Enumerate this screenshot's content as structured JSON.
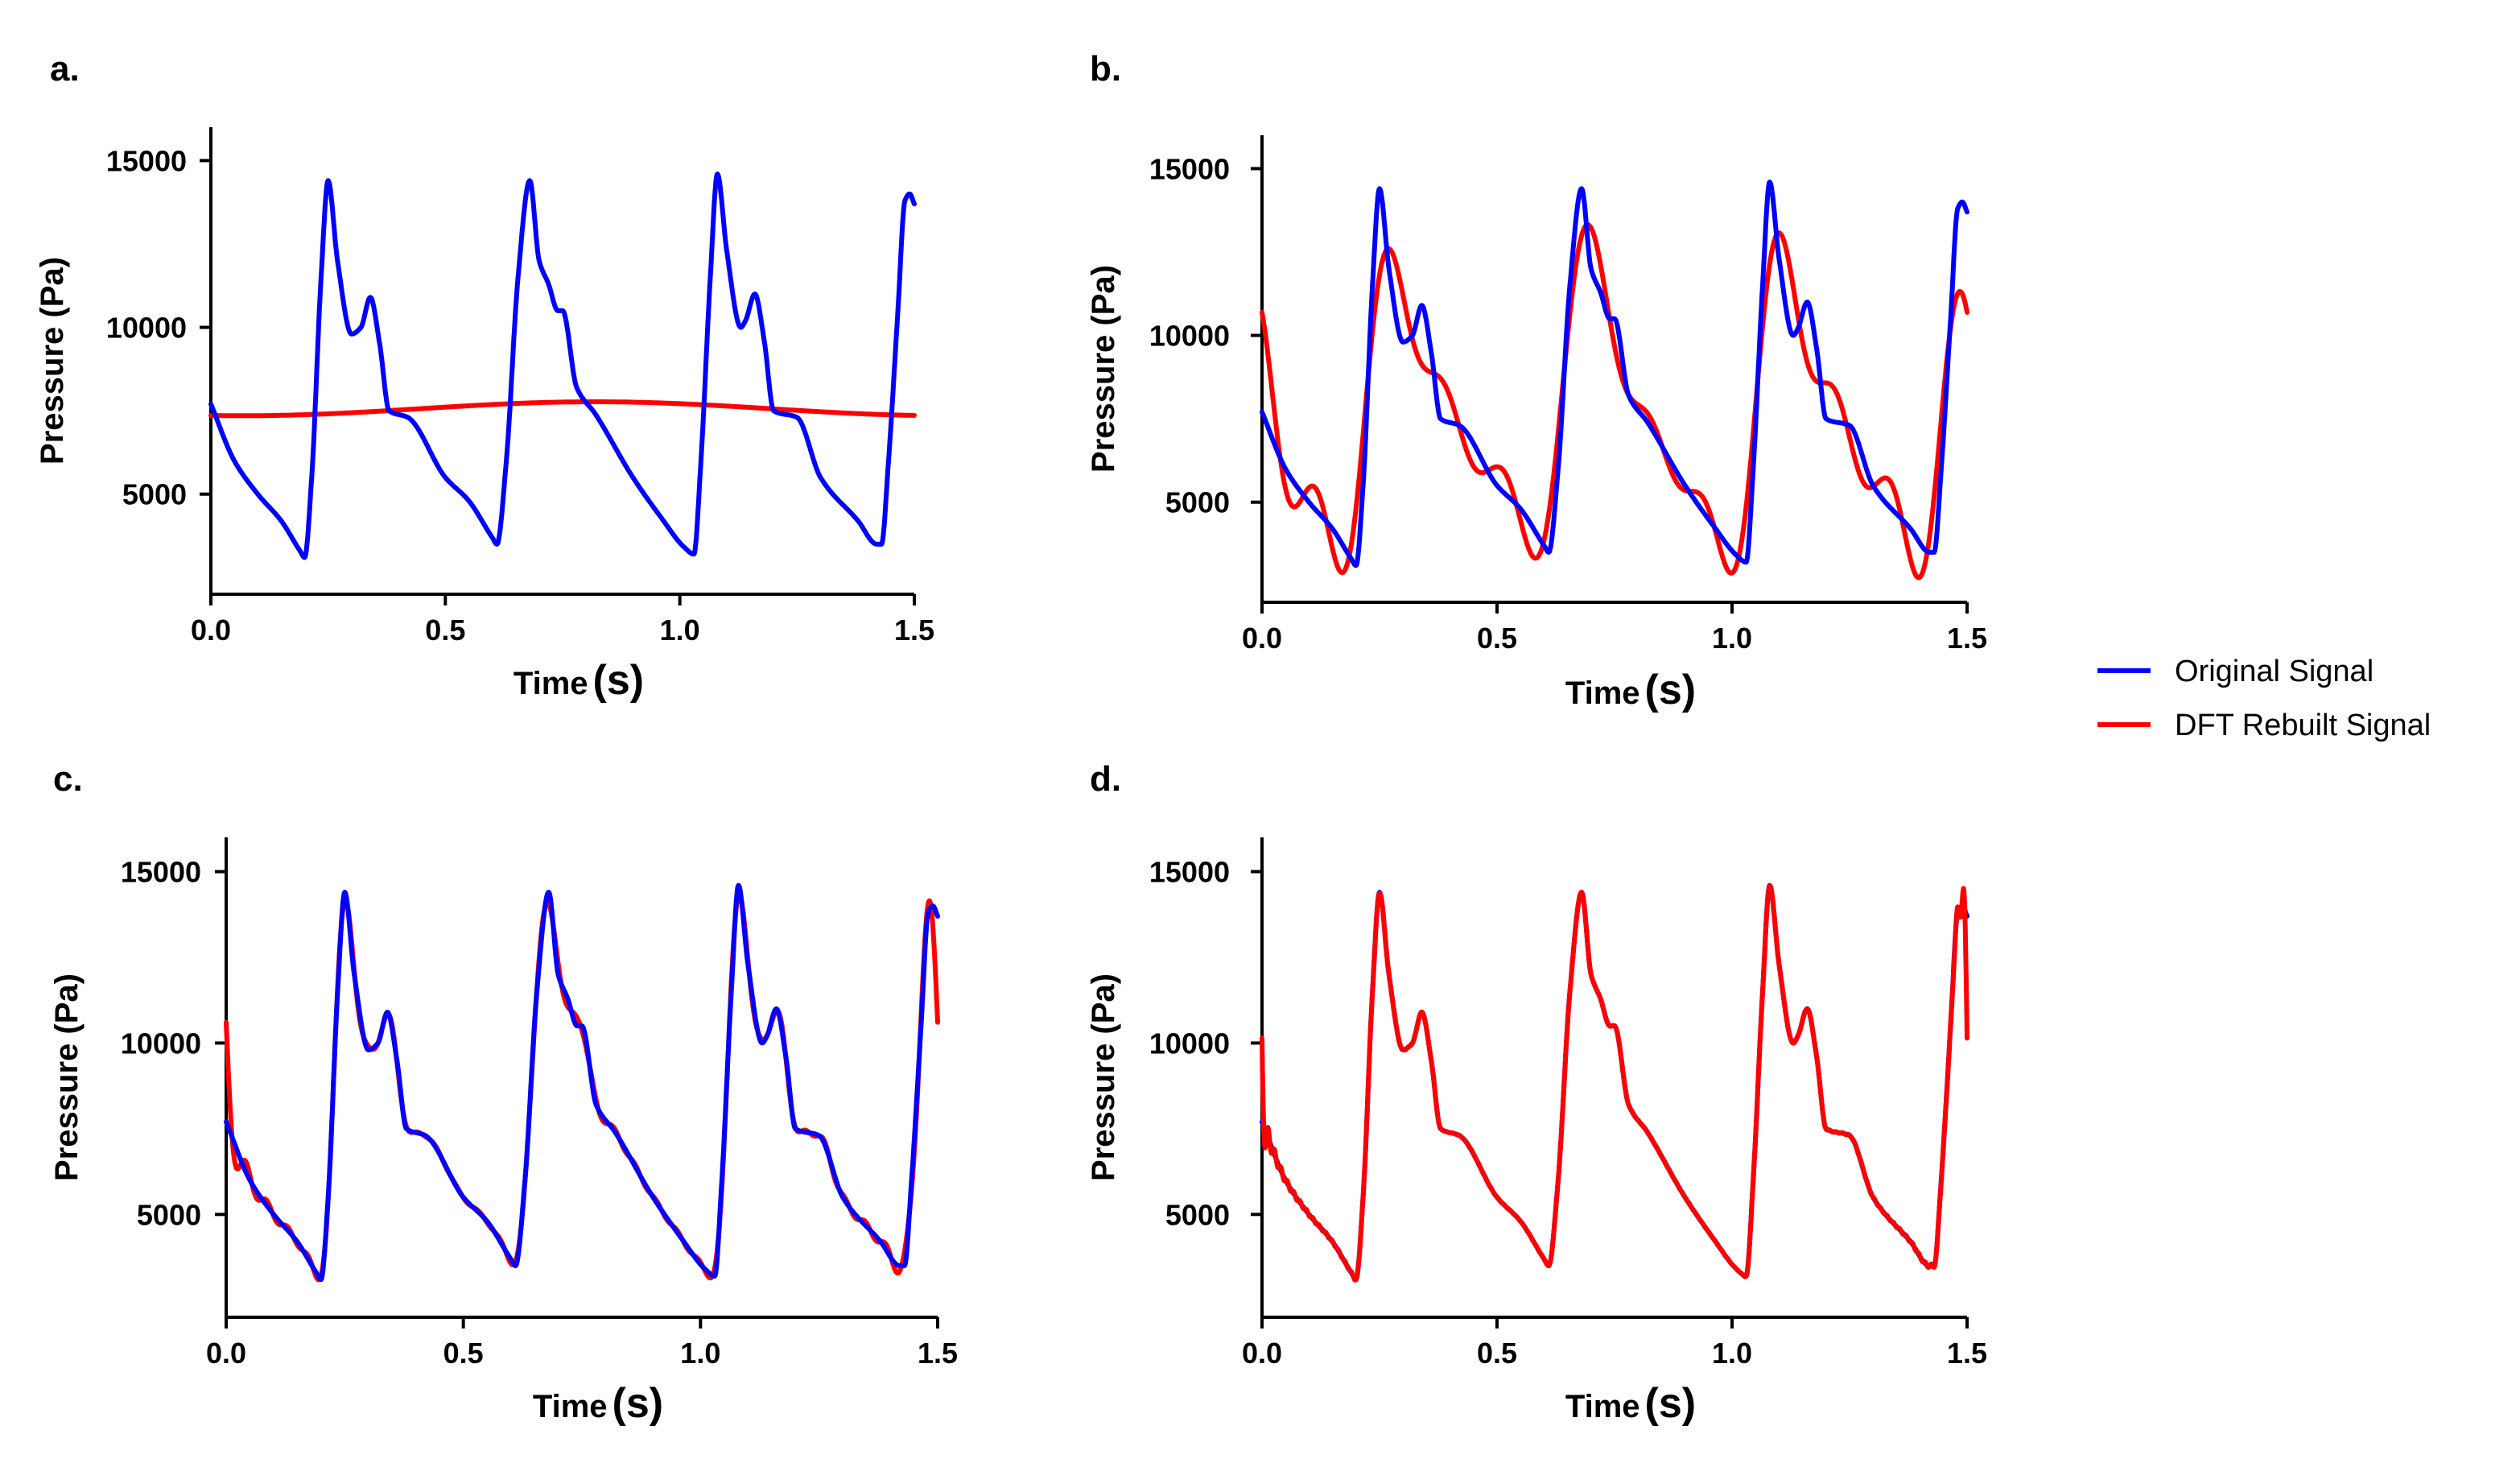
{
  "chart_data": [
    {
      "type": "line",
      "panel": "a.",
      "title": "",
      "xlabel": "Time",
      "xlabel_unit": "(s)",
      "ylabel": "Pressure (Pa)",
      "xlim": [
        0,
        1.5
      ],
      "ylim": [
        2000,
        16000
      ],
      "xticks": [
        "0.0",
        "0.5",
        "1.0",
        "1.5"
      ],
      "yticks": [
        "5000",
        "10000",
        "15000"
      ],
      "series": [
        {
          "name": "Original Signal",
          "color": "#0000ff",
          "style": "original"
        },
        {
          "name": "DFT Rebuilt Signal",
          "color": "#ff0000",
          "style": "dft_lowest"
        }
      ]
    },
    {
      "type": "line",
      "panel": "b.",
      "title": "",
      "xlabel": "Time",
      "xlabel_unit": "(s)",
      "ylabel": "Pressure (Pa)",
      "xlim": [
        0,
        1.5
      ],
      "ylim": [
        2000,
        16000
      ],
      "xticks": [
        "0.0",
        "0.5",
        "1.0",
        "1.5"
      ],
      "yticks": [
        "5000",
        "10000",
        "15000"
      ],
      "series": [
        {
          "name": "Original Signal",
          "color": "#0000ff",
          "style": "original"
        },
        {
          "name": "DFT Rebuilt Signal",
          "color": "#ff0000",
          "style": "dft_low"
        }
      ]
    },
    {
      "type": "line",
      "panel": "c.",
      "title": "",
      "xlabel": "Time",
      "xlabel_unit": "(s)",
      "ylabel": "Pressure (Pa)",
      "xlim": [
        0,
        1.5
      ],
      "ylim": [
        2000,
        16000
      ],
      "xticks": [
        "0.0",
        "0.5",
        "1.0",
        "1.5"
      ],
      "yticks": [
        "5000",
        "10000",
        "15000"
      ],
      "series": [
        {
          "name": "Original Signal",
          "color": "#0000ff",
          "style": "original"
        },
        {
          "name": "DFT Rebuilt Signal",
          "color": "#ff0000",
          "style": "dft_mid"
        }
      ]
    },
    {
      "type": "line",
      "panel": "d.",
      "title": "",
      "xlabel": "Time",
      "xlabel_unit": "(s)",
      "ylabel": "Pressure (Pa)",
      "xlim": [
        0,
        1.5
      ],
      "ylim": [
        2000,
        16000
      ],
      "xticks": [
        "0.0",
        "0.5",
        "1.0",
        "1.5"
      ],
      "yticks": [
        "5000",
        "10000",
        "15000"
      ],
      "series": [
        {
          "name": "Original Signal",
          "color": "#0000ff",
          "style": "original"
        },
        {
          "name": "DFT Rebuilt Signal",
          "color": "#ff0000",
          "style": "dft_high"
        }
      ]
    }
  ],
  "original_signal_keypoints": {
    "t": [
      0.0,
      0.05,
      0.1,
      0.15,
      0.19,
      0.2,
      0.215,
      0.235,
      0.25,
      0.27,
      0.3,
      0.32,
      0.34,
      0.36,
      0.38,
      0.42,
      0.5,
      0.55,
      0.6,
      0.61,
      0.63,
      0.655,
      0.68,
      0.7,
      0.72,
      0.74,
      0.75,
      0.78,
      0.82,
      0.9,
      0.96,
      1.01,
      1.03,
      1.045,
      1.065,
      1.08,
      1.1,
      1.13,
      1.14,
      1.16,
      1.18,
      1.2,
      1.25,
      1.3,
      1.38,
      1.42,
      1.43,
      1.445,
      1.465,
      1.48,
      1.49,
      1.5
    ],
    "p": [
      7700,
      6000,
      5000,
      4200,
      3300,
      3100,
      5500,
      11500,
      14400,
      12000,
      9800,
      10000,
      10900,
      9500,
      7500,
      7300,
      5500,
      4800,
      3700,
      3500,
      6000,
      11500,
      14400,
      12000,
      11300,
      10500,
      10500,
      8200,
      7400,
      5500,
      4300,
      3400,
      3200,
      6000,
      11500,
      14600,
      12300,
      10000,
      10200,
      11000,
      9600,
      7500,
      7300,
      5500,
      4200,
      3500,
      3500,
      6000,
      10500,
      13800,
      14000,
      13700
    ]
  },
  "legend": {
    "items": [
      {
        "label": "Original Signal",
        "color": "#0000ff"
      },
      {
        "label": "DFT Rebuilt Signal",
        "color": "#ff0000"
      }
    ]
  }
}
